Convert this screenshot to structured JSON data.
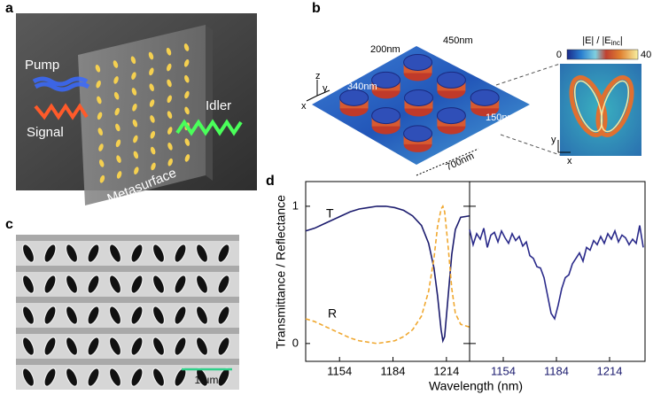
{
  "panel_a": {
    "label": "a",
    "pump": "Pump",
    "signal": "Signal",
    "idler": "Idler",
    "metasurface": "Metasurface"
  },
  "panel_b": {
    "label": "b",
    "dimensions": [
      "200nm",
      "450nm",
      "340nm",
      "150nm",
      "700nm"
    ],
    "axes": [
      "z",
      "y",
      "x"
    ],
    "colorbar_title": [
      "|E| / |E",
      "inc",
      "|"
    ],
    "colorbar_ticks": [
      0,
      40
    ],
    "map_axes": [
      "y",
      "x"
    ]
  },
  "panel_c": {
    "label": "c",
    "scale_bar": "1 μm"
  },
  "figure_d": {
    "label": "d",
    "xlabel": "Wavelength (nm)",
    "ylabel": "Transmittance / Reflectance"
  },
  "chart_data": [
    {
      "type": "line",
      "xlim": [
        1135,
        1227
      ],
      "xticks": [
        1154,
        1184,
        1214
      ],
      "ylim": [
        -0.13,
        1.18
      ],
      "yticks": [
        0,
        1
      ],
      "x": [
        1135,
        1140,
        1145,
        1150,
        1155,
        1160,
        1165,
        1170,
        1175,
        1180,
        1185,
        1190,
        1195,
        1200,
        1204,
        1207,
        1209,
        1211,
        1212,
        1213,
        1215,
        1217,
        1219,
        1222,
        1227
      ],
      "series": [
        {
          "name": "T",
          "color": "#1c1c6e",
          "linestyle": "solid",
          "values": [
            0.82,
            0.84,
            0.87,
            0.9,
            0.93,
            0.96,
            0.98,
            0.99,
            1.0,
            1.0,
            0.99,
            0.97,
            0.93,
            0.86,
            0.73,
            0.55,
            0.35,
            0.1,
            0.02,
            0.05,
            0.35,
            0.65,
            0.83,
            0.92,
            0.93
          ]
        },
        {
          "name": "R",
          "color": "#f0a830",
          "linestyle": "dashed",
          "values": [
            0.18,
            0.16,
            0.13,
            0.1,
            0.07,
            0.04,
            0.02,
            0.01,
            0.0,
            0.01,
            0.02,
            0.05,
            0.1,
            0.2,
            0.38,
            0.62,
            0.85,
            0.98,
            1.0,
            0.96,
            0.7,
            0.4,
            0.22,
            0.14,
            0.12
          ]
        }
      ]
    },
    {
      "type": "line",
      "xlim": [
        1135,
        1234
      ],
      "xticks": [
        1154,
        1184,
        1214
      ],
      "ylim": [
        -0.13,
        1.18
      ],
      "x": [
        1135,
        1137,
        1139,
        1141,
        1143,
        1145,
        1147,
        1149,
        1151,
        1153,
        1155,
        1157,
        1159,
        1161,
        1163,
        1165,
        1167,
        1169,
        1171,
        1173,
        1175,
        1177,
        1179,
        1181,
        1183,
        1185,
        1187,
        1189,
        1191,
        1193,
        1195,
        1197,
        1199,
        1201,
        1203,
        1205,
        1207,
        1209,
        1211,
        1213,
        1215,
        1217,
        1219,
        1221,
        1223,
        1225,
        1227,
        1229,
        1231,
        1233
      ],
      "series": [
        {
          "color": "#2a2a8a",
          "linestyle": "solid",
          "values": [
            0.83,
            0.72,
            0.8,
            0.76,
            0.84,
            0.7,
            0.79,
            0.81,
            0.74,
            0.82,
            0.77,
            0.73,
            0.8,
            0.75,
            0.78,
            0.71,
            0.74,
            0.64,
            0.62,
            0.56,
            0.55,
            0.48,
            0.35,
            0.22,
            0.18,
            0.28,
            0.4,
            0.48,
            0.5,
            0.58,
            0.62,
            0.66,
            0.6,
            0.7,
            0.68,
            0.75,
            0.72,
            0.78,
            0.73,
            0.8,
            0.76,
            0.82,
            0.74,
            0.79,
            0.77,
            0.72,
            0.76,
            0.73,
            0.86,
            0.7
          ]
        }
      ]
    }
  ]
}
